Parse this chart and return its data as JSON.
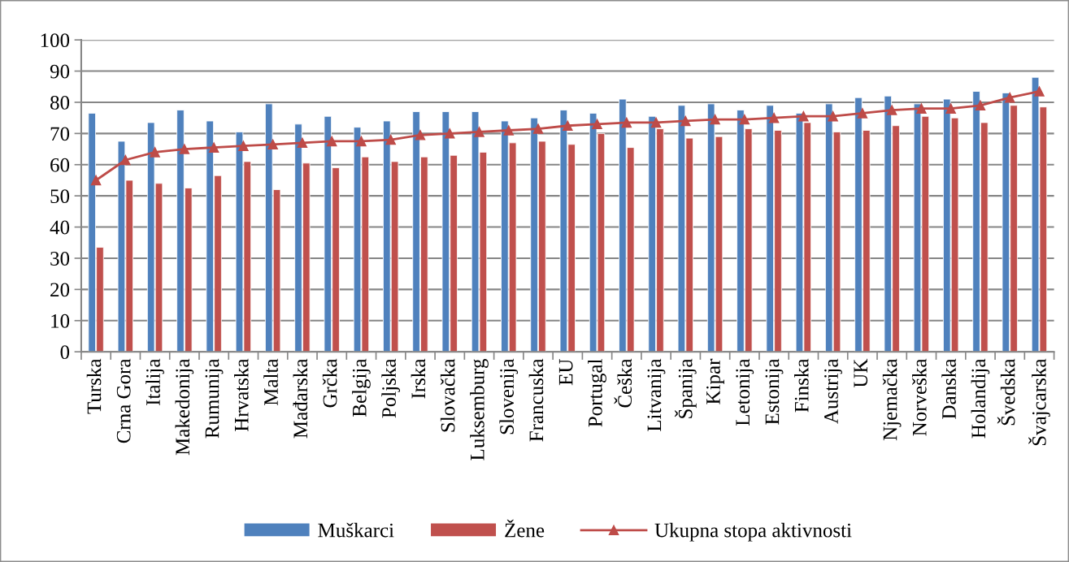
{
  "chart_data": {
    "type": "bar",
    "categories": [
      "Turska",
      "Crna Gora",
      "Italija",
      "Makedonija",
      "Rumunija",
      "Hrvatska",
      "Malta",
      "Mađarska",
      "Grčka",
      "Belgija",
      "Poljska",
      "Irska",
      "Slovačka",
      "Luksemburg",
      "Slovenija",
      "Francuska",
      "EU",
      "Portugal",
      "Češka",
      "Litvanija",
      "Španija",
      "Kipar",
      "Letonija",
      "Estonija",
      "Finska",
      "Austrija",
      "UK",
      "Njemačka",
      "Norveška",
      "Danska",
      "Holandija",
      "Švedska",
      "Švajcarska"
    ],
    "series": [
      {
        "name": "Muškarci",
        "color": "#4f81bd",
        "values": [
          76.5,
          67.5,
          73.5,
          77.5,
          74,
          70.5,
          79.5,
          73,
          75.5,
          72,
          74,
          77,
          77,
          77,
          74,
          75,
          77.5,
          76.5,
          81,
          75.5,
          79,
          79.5,
          77.5,
          79,
          76.5,
          79.5,
          81.5,
          82,
          79.5,
          81,
          83.5,
          83,
          88
        ]
      },
      {
        "name": "Žene",
        "color": "#c0504d",
        "values": [
          33.5,
          55,
          54,
          52.5,
          56.5,
          61,
          52,
          60.5,
          59,
          62.5,
          61,
          62.5,
          63,
          64,
          67,
          67.5,
          66.5,
          70,
          65.5,
          71.5,
          68.5,
          69,
          71.5,
          71,
          73.5,
          70.5,
          71,
          72.5,
          75.5,
          75,
          73.5,
          79,
          78.5
        ]
      },
      {
        "name": "Ukupna stopa aktivnosti",
        "type": "line",
        "color": "#be4b48",
        "marker": "triangle",
        "values": [
          55,
          61.5,
          64,
          65,
          65.5,
          66,
          66.5,
          67,
          67.5,
          67.5,
          68,
          69.5,
          70,
          70.5,
          71,
          71.5,
          72.5,
          73,
          73.5,
          73.5,
          74,
          74.5,
          74.5,
          75,
          75.5,
          75.5,
          76.5,
          77.5,
          78,
          78,
          79,
          81.5,
          83.5
        ]
      }
    ],
    "ylim": [
      0,
      100
    ],
    "yticks": [
      0,
      10,
      20,
      30,
      40,
      50,
      60,
      70,
      80,
      90,
      100
    ],
    "grid": "y",
    "legend": "bottom"
  }
}
